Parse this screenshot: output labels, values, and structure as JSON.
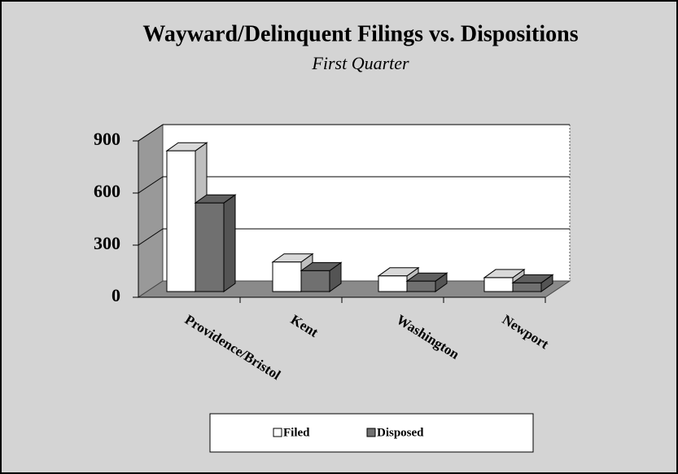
{
  "chart_data": {
    "type": "bar3d",
    "title": "Wayward/Delinquent Filings vs. Dispositions",
    "subtitle": "First Quarter",
    "categories": [
      "Providence/Bristol",
      "Kent",
      "Washington",
      "Newport"
    ],
    "series": [
      {
        "name": "Filed",
        "color": "#ffffff",
        "values": [
          810,
          170,
          90,
          80
        ]
      },
      {
        "name": "Disposed",
        "color": "#707070",
        "values": [
          510,
          120,
          60,
          50
        ]
      }
    ],
    "ylim": [
      0,
      900
    ],
    "yticks": [
      0,
      300,
      600,
      900
    ],
    "grid": true
  }
}
